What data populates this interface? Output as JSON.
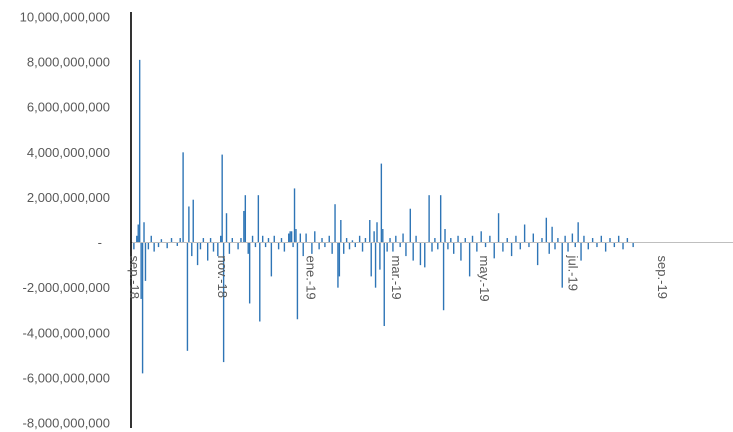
{
  "chart_data": {
    "type": "bar",
    "title": "",
    "xlabel": "",
    "ylabel": "",
    "ylim": [
      -8000000000,
      10000000000
    ],
    "y_ticks": [
      {
        "value": 10000000000,
        "label": "10,000,000,000"
      },
      {
        "value": 8000000000,
        "label": "8,000,000,000"
      },
      {
        "value": 6000000000,
        "label": "6,000,000,000"
      },
      {
        "value": 4000000000,
        "label": "4,000,000,000"
      },
      {
        "value": 2000000000,
        "label": "2,000,000,000"
      },
      {
        "value": 0,
        "label": "-"
      },
      {
        "value": -2000000000,
        "label": "-2,000,000,000"
      },
      {
        "value": -4000000000,
        "label": "-4,000,000,000"
      },
      {
        "value": -6000000000,
        "label": "-6,000,000,000"
      },
      {
        "value": -8000000000,
        "label": "-8,000,000,000"
      }
    ],
    "x_ticks": [
      {
        "date": "2018-09-01",
        "label": "sep.-18"
      },
      {
        "date": "2018-11-01",
        "label": "nov.-18"
      },
      {
        "date": "2019-01-01",
        "label": "ene.-19"
      },
      {
        "date": "2019-03-01",
        "label": "mar.-19"
      },
      {
        "date": "2019-05-01",
        "label": "may.-19"
      },
      {
        "date": "2019-07-01",
        "label": "jul.-19"
      },
      {
        "date": "2019-09-01",
        "label": "sep.-19"
      }
    ],
    "x_range": [
      "2018-08-30",
      "2019-10-20"
    ],
    "grid": false,
    "legend": "none",
    "bar_color": "#2e75b6",
    "series": [
      {
        "points": [
          {
            "x": "2018-09-01",
            "y": -300000000
          },
          {
            "x": "2018-09-03",
            "y": 300000000
          },
          {
            "x": "2018-09-04",
            "y": 800000000
          },
          {
            "x": "2018-09-05",
            "y": 8100000000
          },
          {
            "x": "2018-09-06",
            "y": -2500000000
          },
          {
            "x": "2018-09-07",
            "y": -5800000000
          },
          {
            "x": "2018-09-08",
            "y": 900000000
          },
          {
            "x": "2018-09-09",
            "y": -1700000000
          },
          {
            "x": "2018-09-11",
            "y": -300000000
          },
          {
            "x": "2018-09-13",
            "y": 300000000
          },
          {
            "x": "2018-09-15",
            "y": -400000000
          },
          {
            "x": "2018-09-18",
            "y": -200000000
          },
          {
            "x": "2018-09-20",
            "y": 150000000
          },
          {
            "x": "2018-09-24",
            "y": -250000000
          },
          {
            "x": "2018-09-27",
            "y": 200000000
          },
          {
            "x": "2018-10-01",
            "y": -150000000
          },
          {
            "x": "2018-10-03",
            "y": 200000000
          },
          {
            "x": "2018-10-05",
            "y": 4000000000
          },
          {
            "x": "2018-10-08",
            "y": -4800000000
          },
          {
            "x": "2018-10-09",
            "y": 1600000000
          },
          {
            "x": "2018-10-11",
            "y": -600000000
          },
          {
            "x": "2018-10-12",
            "y": 1900000000
          },
          {
            "x": "2018-10-15",
            "y": -1000000000
          },
          {
            "x": "2018-10-17",
            "y": -300000000
          },
          {
            "x": "2018-10-19",
            "y": 200000000
          },
          {
            "x": "2018-10-22",
            "y": -800000000
          },
          {
            "x": "2018-10-24",
            "y": 200000000
          },
          {
            "x": "2018-10-26",
            "y": -400000000
          },
          {
            "x": "2018-10-29",
            "y": -600000000
          },
          {
            "x": "2018-10-31",
            "y": 300000000
          },
          {
            "x": "2018-11-01",
            "y": 3900000000
          },
          {
            "x": "2018-11-02",
            "y": -5300000000
          },
          {
            "x": "2018-11-04",
            "y": 1300000000
          },
          {
            "x": "2018-11-06",
            "y": -500000000
          },
          {
            "x": "2018-11-08",
            "y": 200000000
          },
          {
            "x": "2018-11-12",
            "y": -300000000
          },
          {
            "x": "2018-11-14",
            "y": 200000000
          },
          {
            "x": "2018-11-16",
            "y": 1400000000
          },
          {
            "x": "2018-11-17",
            "y": 2100000000
          },
          {
            "x": "2018-11-19",
            "y": -500000000
          },
          {
            "x": "2018-11-20",
            "y": -2700000000
          },
          {
            "x": "2018-11-22",
            "y": 300000000
          },
          {
            "x": "2018-11-24",
            "y": -200000000
          },
          {
            "x": "2018-11-26",
            "y": 2100000000
          },
          {
            "x": "2018-11-27",
            "y": -3500000000
          },
          {
            "x": "2018-11-29",
            "y": 300000000
          },
          {
            "x": "2018-12-01",
            "y": -200000000
          },
          {
            "x": "2018-12-03",
            "y": 200000000
          },
          {
            "x": "2018-12-05",
            "y": -1500000000
          },
          {
            "x": "2018-12-07",
            "y": 300000000
          },
          {
            "x": "2018-12-10",
            "y": -300000000
          },
          {
            "x": "2018-12-12",
            "y": 200000000
          },
          {
            "x": "2018-12-14",
            "y": -400000000
          },
          {
            "x": "2018-12-17",
            "y": 400000000
          },
          {
            "x": "2018-12-18",
            "y": 500000000
          },
          {
            "x": "2018-12-19",
            "y": 500000000
          },
          {
            "x": "2018-12-20",
            "y": -200000000
          },
          {
            "x": "2018-12-21",
            "y": 2400000000
          },
          {
            "x": "2018-12-22",
            "y": 600000000
          },
          {
            "x": "2018-12-23",
            "y": -3400000000
          },
          {
            "x": "2018-12-25",
            "y": 400000000
          },
          {
            "x": "2018-12-27",
            "y": -600000000
          },
          {
            "x": "2018-12-29",
            "y": 400000000
          },
          {
            "x": "2019-01-02",
            "y": -500000000
          },
          {
            "x": "2019-01-04",
            "y": 500000000
          },
          {
            "x": "2019-01-07",
            "y": -300000000
          },
          {
            "x": "2019-01-09",
            "y": 200000000
          },
          {
            "x": "2019-01-11",
            "y": -200000000
          },
          {
            "x": "2019-01-14",
            "y": 300000000
          },
          {
            "x": "2019-01-16",
            "y": -500000000
          },
          {
            "x": "2019-01-18",
            "y": 1700000000
          },
          {
            "x": "2019-01-20",
            "y": -2000000000
          },
          {
            "x": "2019-01-21",
            "y": -1500000000
          },
          {
            "x": "2019-01-22",
            "y": 1000000000
          },
          {
            "x": "2019-01-24",
            "y": -500000000
          },
          {
            "x": "2019-01-26",
            "y": 200000000
          },
          {
            "x": "2019-01-28",
            "y": -300000000
          },
          {
            "x": "2019-01-30",
            "y": 100000000
          },
          {
            "x": "2019-02-01",
            "y": -200000000
          },
          {
            "x": "2019-02-04",
            "y": 300000000
          },
          {
            "x": "2019-02-06",
            "y": -400000000
          },
          {
            "x": "2019-02-08",
            "y": 200000000
          },
          {
            "x": "2019-02-11",
            "y": 1000000000
          },
          {
            "x": "2019-02-12",
            "y": -1500000000
          },
          {
            "x": "2019-02-14",
            "y": 500000000
          },
          {
            "x": "2019-02-15",
            "y": -2000000000
          },
          {
            "x": "2019-02-16",
            "y": 900000000
          },
          {
            "x": "2019-02-18",
            "y": -1200000000
          },
          {
            "x": "2019-02-19",
            "y": 3500000000
          },
          {
            "x": "2019-02-20",
            "y": 600000000
          },
          {
            "x": "2019-02-21",
            "y": -3700000000
          },
          {
            "x": "2019-02-23",
            "y": -400000000
          },
          {
            "x": "2019-02-25",
            "y": 200000000
          },
          {
            "x": "2019-02-27",
            "y": -400000000
          },
          {
            "x": "2019-03-01",
            "y": 300000000
          },
          {
            "x": "2019-03-04",
            "y": -200000000
          },
          {
            "x": "2019-03-06",
            "y": 400000000
          },
          {
            "x": "2019-03-08",
            "y": -600000000
          },
          {
            "x": "2019-03-11",
            "y": 1500000000
          },
          {
            "x": "2019-03-13",
            "y": -800000000
          },
          {
            "x": "2019-03-15",
            "y": 300000000
          },
          {
            "x": "2019-03-18",
            "y": -1000000000
          },
          {
            "x": "2019-03-21",
            "y": -1100000000
          },
          {
            "x": "2019-03-24",
            "y": 2100000000
          },
          {
            "x": "2019-03-26",
            "y": -400000000
          },
          {
            "x": "2019-03-28",
            "y": 200000000
          },
          {
            "x": "2019-03-30",
            "y": -300000000
          },
          {
            "x": "2019-04-01",
            "y": 2100000000
          },
          {
            "x": "2019-04-03",
            "y": -3000000000
          },
          {
            "x": "2019-04-04",
            "y": 600000000
          },
          {
            "x": "2019-04-06",
            "y": -300000000
          },
          {
            "x": "2019-04-08",
            "y": 200000000
          },
          {
            "x": "2019-04-10",
            "y": -500000000
          },
          {
            "x": "2019-04-13",
            "y": 300000000
          },
          {
            "x": "2019-04-15",
            "y": -800000000
          },
          {
            "x": "2019-04-18",
            "y": 200000000
          },
          {
            "x": "2019-04-21",
            "y": -1500000000
          },
          {
            "x": "2019-04-23",
            "y": 300000000
          },
          {
            "x": "2019-04-26",
            "y": -400000000
          },
          {
            "x": "2019-04-29",
            "y": 500000000
          },
          {
            "x": "2019-05-02",
            "y": -200000000
          },
          {
            "x": "2019-05-05",
            "y": 300000000
          },
          {
            "x": "2019-05-08",
            "y": -700000000
          },
          {
            "x": "2019-05-11",
            "y": 1300000000
          },
          {
            "x": "2019-05-14",
            "y": -400000000
          },
          {
            "x": "2019-05-17",
            "y": 200000000
          },
          {
            "x": "2019-05-20",
            "y": -600000000
          },
          {
            "x": "2019-05-23",
            "y": 300000000
          },
          {
            "x": "2019-05-26",
            "y": -300000000
          },
          {
            "x": "2019-05-29",
            "y": 800000000
          },
          {
            "x": "2019-06-01",
            "y": -200000000
          },
          {
            "x": "2019-06-04",
            "y": 400000000
          },
          {
            "x": "2019-06-07",
            "y": -1000000000
          },
          {
            "x": "2019-06-10",
            "y": 200000000
          },
          {
            "x": "2019-06-13",
            "y": 1100000000
          },
          {
            "x": "2019-06-15",
            "y": -500000000
          },
          {
            "x": "2019-06-17",
            "y": 700000000
          },
          {
            "x": "2019-06-19",
            "y": -300000000
          },
          {
            "x": "2019-06-21",
            "y": 200000000
          },
          {
            "x": "2019-06-24",
            "y": -2000000000
          },
          {
            "x": "2019-06-26",
            "y": 300000000
          },
          {
            "x": "2019-06-28",
            "y": -400000000
          },
          {
            "x": "2019-07-01",
            "y": 400000000
          },
          {
            "x": "2019-07-03",
            "y": -200000000
          },
          {
            "x": "2019-07-05",
            "y": 900000000
          },
          {
            "x": "2019-07-07",
            "y": -800000000
          },
          {
            "x": "2019-07-09",
            "y": 300000000
          },
          {
            "x": "2019-07-12",
            "y": -300000000
          },
          {
            "x": "2019-07-15",
            "y": 200000000
          },
          {
            "x": "2019-07-18",
            "y": -200000000
          },
          {
            "x": "2019-07-21",
            "y": 300000000
          },
          {
            "x": "2019-07-24",
            "y": -400000000
          },
          {
            "x": "2019-07-27",
            "y": 200000000
          },
          {
            "x": "2019-07-30",
            "y": -200000000
          },
          {
            "x": "2019-08-02",
            "y": 300000000
          },
          {
            "x": "2019-08-05",
            "y": -300000000
          },
          {
            "x": "2019-08-08",
            "y": 200000000
          },
          {
            "x": "2019-08-12",
            "y": -200000000
          }
        ]
      }
    ]
  }
}
